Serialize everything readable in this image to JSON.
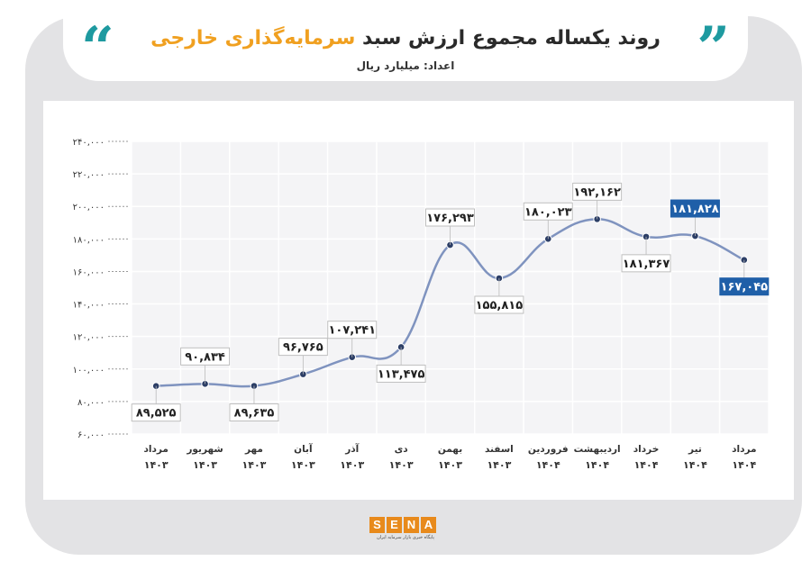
{
  "header": {
    "title_main": "روند یکساله مجموع ارزش سبد",
    "title_accent": "سرمایه‌گذاری خارجی",
    "subtitle": "اعداد: میلیارد ریال"
  },
  "logo": {
    "mark": [
      "S",
      "E",
      "N",
      "A"
    ],
    "tagline": "پایگاه خبری بازار سرمایه ایران"
  },
  "colors": {
    "accent": "#f0a020",
    "quote": "#1e9aa0",
    "line": "#7f93bf",
    "point": "#2c3e66",
    "highlight_box": "#1f5fa8"
  },
  "chart_data": {
    "type": "line",
    "smooth": true,
    "grid": true,
    "ylim": [
      60000,
      240000
    ],
    "y_ticks": [
      "۶۰,۰۰۰",
      "۸۰,۰۰۰",
      "۱۰۰,۰۰۰",
      "۱۲۰,۰۰۰",
      "۱۴۰,۰۰۰",
      "۱۶۰,۰۰۰",
      "۱۸۰,۰۰۰",
      "۲۰۰,۰۰۰",
      "۲۲۰,۰۰۰",
      "۲۴۰,۰۰۰"
    ],
    "y_tick_values": [
      60000,
      80000,
      100000,
      120000,
      140000,
      160000,
      180000,
      200000,
      220000,
      240000
    ],
    "categories": [
      {
        "month": "مرداد",
        "year": "۱۴۰۳"
      },
      {
        "month": "شهریور",
        "year": "۱۴۰۳"
      },
      {
        "month": "مهر",
        "year": "۱۴۰۳"
      },
      {
        "month": "آبان",
        "year": "۱۴۰۳"
      },
      {
        "month": "آذر",
        "year": "۱۴۰۳"
      },
      {
        "month": "دی",
        "year": "۱۴۰۳"
      },
      {
        "month": "بهمن",
        "year": "۱۴۰۳"
      },
      {
        "month": "اسفند",
        "year": "۱۴۰۳"
      },
      {
        "month": "فروردین",
        "year": "۱۴۰۴"
      },
      {
        "month": "اردیبهشت",
        "year": "۱۴۰۴"
      },
      {
        "month": "خرداد",
        "year": "۱۴۰۴"
      },
      {
        "month": "تیر",
        "year": "۱۴۰۴"
      },
      {
        "month": "مرداد",
        "year": "۱۴۰۴"
      }
    ],
    "values": [
      89525,
      90834,
      89635,
      96765,
      107241,
      113475,
      176293,
      155815,
      180023,
      192162,
      181367,
      181828,
      167045
    ],
    "labels": [
      "۸۹,۵۲۵",
      "۹۰,۸۳۴",
      "۸۹,۶۳۵",
      "۹۶,۷۶۵",
      "۱۰۷,۲۴۱",
      "۱۱۳,۴۷۵",
      "۱۷۶,۲۹۳",
      "۱۵۵,۸۱۵",
      "۱۸۰,۰۲۳",
      "۱۹۲,۱۶۲",
      "۱۸۱,۳۶۷",
      "۱۸۱,۸۲۸",
      "۱۶۷,۰۴۵"
    ],
    "label_position": [
      "below",
      "above",
      "below",
      "above",
      "above",
      "below",
      "above",
      "below",
      "above",
      "above",
      "below",
      "above",
      "below"
    ],
    "highlighted": [
      false,
      false,
      false,
      false,
      false,
      false,
      false,
      false,
      false,
      false,
      false,
      true,
      true
    ]
  }
}
